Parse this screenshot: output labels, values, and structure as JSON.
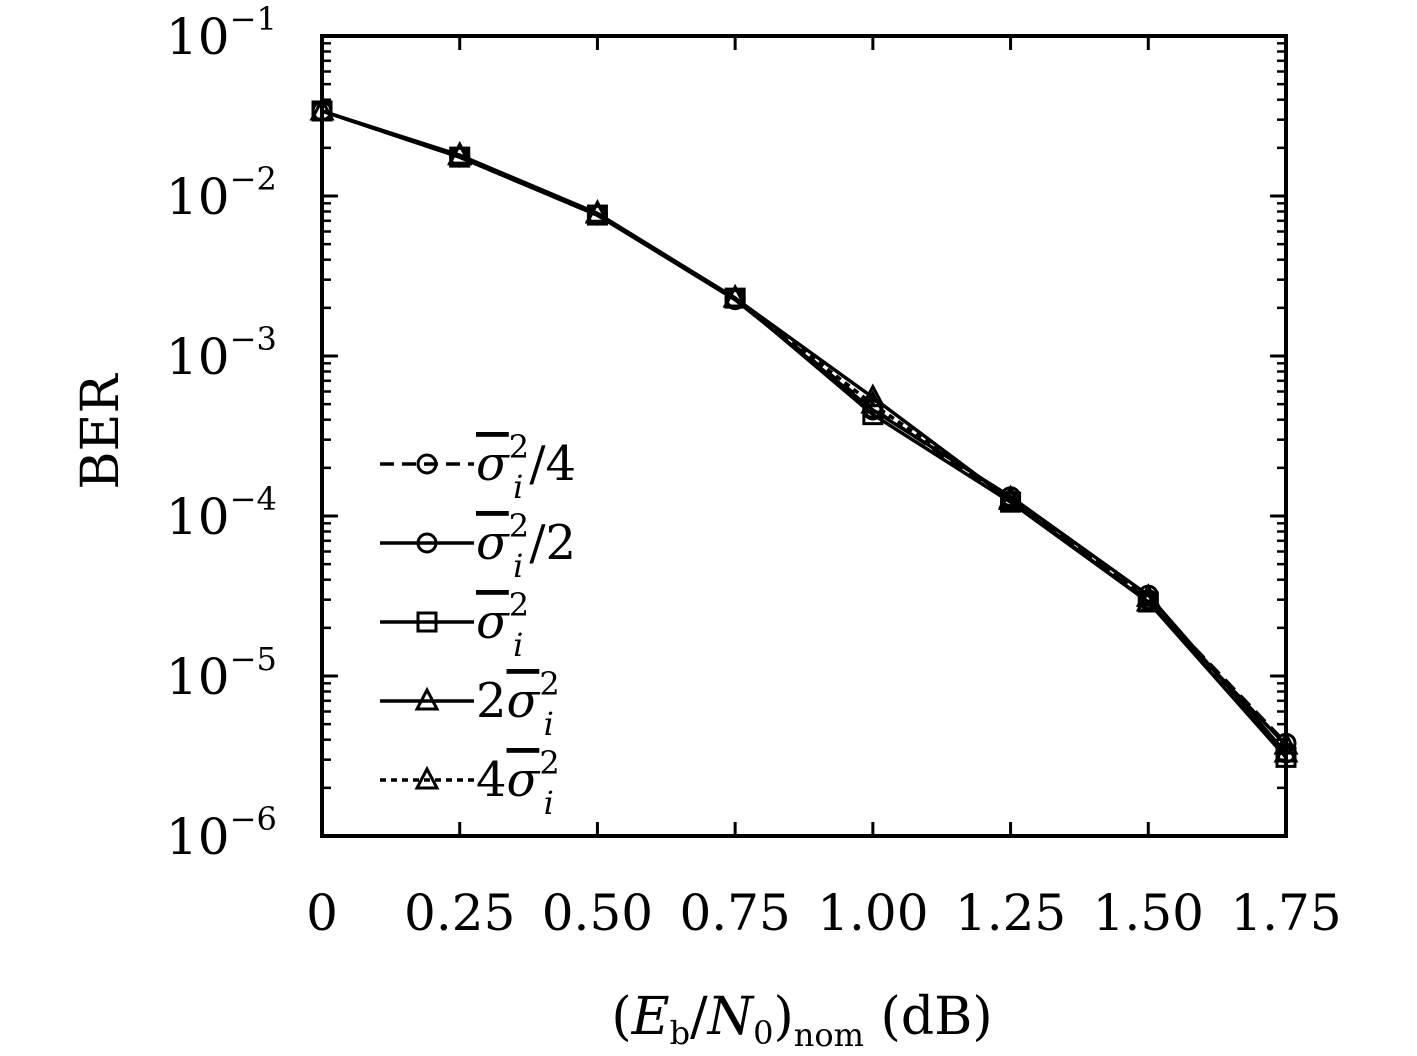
{
  "chart_data": {
    "type": "line",
    "title": "",
    "xlabel": "(E_b/N_0)_nom (dB)",
    "xlabel_parts": {
      "open": "(",
      "E": "E",
      "E_sub": "b",
      "slash": "/",
      "N": "N",
      "N_sub": "0",
      "close": ")",
      "nom": "nom",
      "unit": " (dB)"
    },
    "ylabel": "BER",
    "x": [
      0,
      0.25,
      0.5,
      0.75,
      1.0,
      1.25,
      1.5,
      1.75
    ],
    "xticklabels": [
      "0",
      "0.25",
      "0.50",
      "0.75",
      "1.00",
      "1.25",
      "1.50",
      "1.75"
    ],
    "xlim": [
      0,
      1.75
    ],
    "yscale": "log",
    "ylim": [
      1e-06,
      0.1
    ],
    "yticks": [
      {
        "base": "10",
        "exp": "−1",
        "value": 0.1
      },
      {
        "base": "10",
        "exp": "−2",
        "value": 0.01
      },
      {
        "base": "10",
        "exp": "−3",
        "value": 0.001
      },
      {
        "base": "10",
        "exp": "−4",
        "value": 0.0001
      },
      {
        "base": "10",
        "exp": "−5",
        "value": 1e-05
      },
      {
        "base": "10",
        "exp": "−6",
        "value": 1e-06
      }
    ],
    "legend_position": "lower-left",
    "series": [
      {
        "name": "σ̄ᵢ²/4",
        "label_pre": "",
        "label_post": "/4",
        "marker": "circle",
        "dash": "dashed",
        "values": [
          0.034,
          0.0175,
          0.0076,
          0.0023,
          0.00047,
          0.000125,
          3e-05,
          3.8e-06
        ]
      },
      {
        "name": "σ̄ᵢ²/2",
        "label_pre": "",
        "label_post": "/2",
        "marker": "circle",
        "dash": "solid",
        "values": [
          0.034,
          0.0175,
          0.0076,
          0.00225,
          0.00046,
          0.000132,
          3.2e-05,
          3.3e-06
        ]
      },
      {
        "name": "σ̄ᵢ²",
        "label_pre": "",
        "label_post": "",
        "marker": "square",
        "dash": "solid",
        "values": [
          0.034,
          0.0175,
          0.0076,
          0.0023,
          0.00043,
          0.000122,
          2.9e-05,
          3.1e-06
        ]
      },
      {
        "name": "2σ̄ᵢ²",
        "label_pre": "2",
        "label_post": "",
        "marker": "triangle",
        "dash": "solid",
        "values": [
          0.034,
          0.018,
          0.0078,
          0.0023,
          0.00055,
          0.000125,
          2.9e-05,
          3.7e-06
        ]
      },
      {
        "name": "4σ̄ᵢ²",
        "label_pre": "4",
        "label_post": "",
        "marker": "triangle",
        "dash": "dotted",
        "values": [
          0.034,
          0.0178,
          0.0077,
          0.0023,
          0.0005,
          0.000128,
          3.1e-05,
          3.3e-06
        ]
      }
    ],
    "symbols": {
      "sigma": "σ",
      "sub_i": "i",
      "sup_2": "2"
    }
  }
}
